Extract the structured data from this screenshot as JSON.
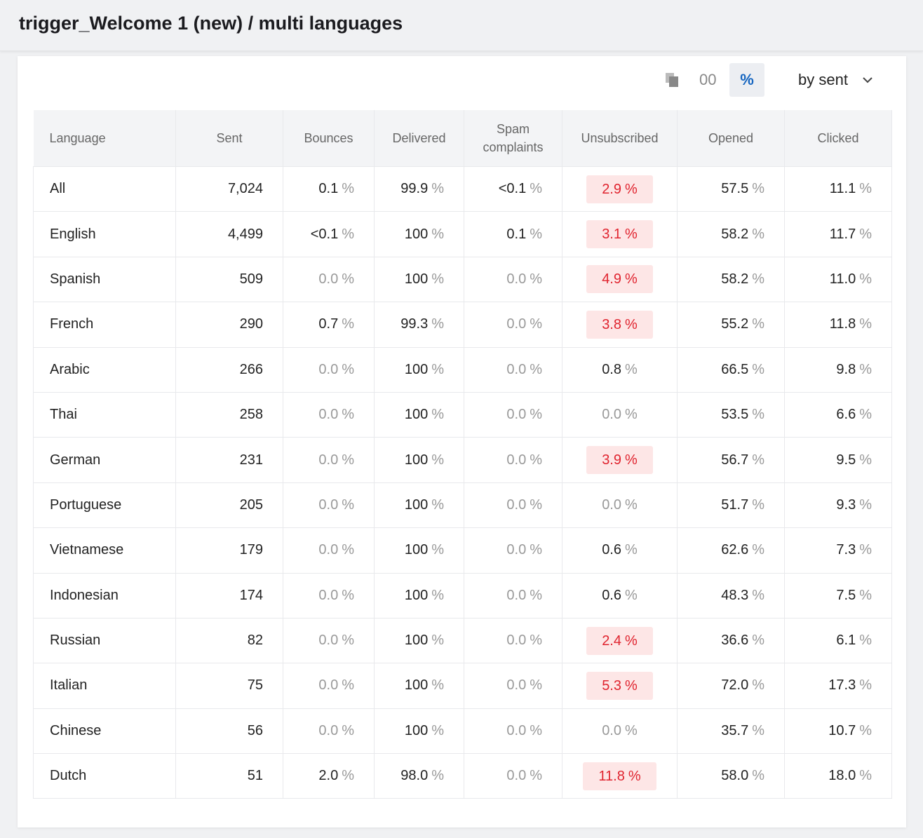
{
  "header": {
    "title": "trigger_Welcome 1 (new) / multi languages"
  },
  "toolbar": {
    "count_toggle": "00",
    "percent_toggle": "%",
    "sort": "by sent"
  },
  "table": {
    "columns": [
      "Language",
      "Sent",
      "Bounces",
      "Delivered",
      "Spam complaints",
      "Unsubscribed",
      "Opened",
      "Clicked"
    ],
    "unit": "%",
    "highlighted_rows": [
      0,
      1,
      2,
      3,
      6,
      10,
      11,
      13
    ],
    "rows": [
      [
        "All",
        "7,024",
        "0.1",
        "99.9",
        "<0.1",
        "2.9",
        "57.5",
        "11.1"
      ],
      [
        "English",
        "4,499",
        "<0.1",
        "100",
        "0.1",
        "3.1",
        "58.2",
        "11.7"
      ],
      [
        "Spanish",
        "509",
        "0.0",
        "100",
        "0.0",
        "4.9",
        "58.2",
        "11.0"
      ],
      [
        "French",
        "290",
        "0.7",
        "99.3",
        "0.0",
        "3.8",
        "55.2",
        "11.8"
      ],
      [
        "Arabic",
        "266",
        "0.0",
        "100",
        "0.0",
        "0.8",
        "66.5",
        "9.8"
      ],
      [
        "Thai",
        "258",
        "0.0",
        "100",
        "0.0",
        "0.0",
        "53.5",
        "6.6"
      ],
      [
        "German",
        "231",
        "0.0",
        "100",
        "0.0",
        "3.9",
        "56.7",
        "9.5"
      ],
      [
        "Portuguese",
        "205",
        "0.0",
        "100",
        "0.0",
        "0.0",
        "51.7",
        "9.3"
      ],
      [
        "Vietnamese",
        "179",
        "0.0",
        "100",
        "0.0",
        "0.6",
        "62.6",
        "7.3"
      ],
      [
        "Indonesian",
        "174",
        "0.0",
        "100",
        "0.0",
        "0.6",
        "48.3",
        "7.5"
      ],
      [
        "Russian",
        "82",
        "0.0",
        "100",
        "0.0",
        "2.4",
        "36.6",
        "6.1"
      ],
      [
        "Italian",
        "75",
        "0.0",
        "100",
        "0.0",
        "5.3",
        "72.0",
        "17.3"
      ],
      [
        "Chinese",
        "56",
        "0.0",
        "100",
        "0.0",
        "0.0",
        "35.7",
        "10.7"
      ],
      [
        "Dutch",
        "51",
        "2.0",
        "98.0",
        "0.0",
        "11.8",
        "58.0",
        "18.0"
      ]
    ]
  }
}
